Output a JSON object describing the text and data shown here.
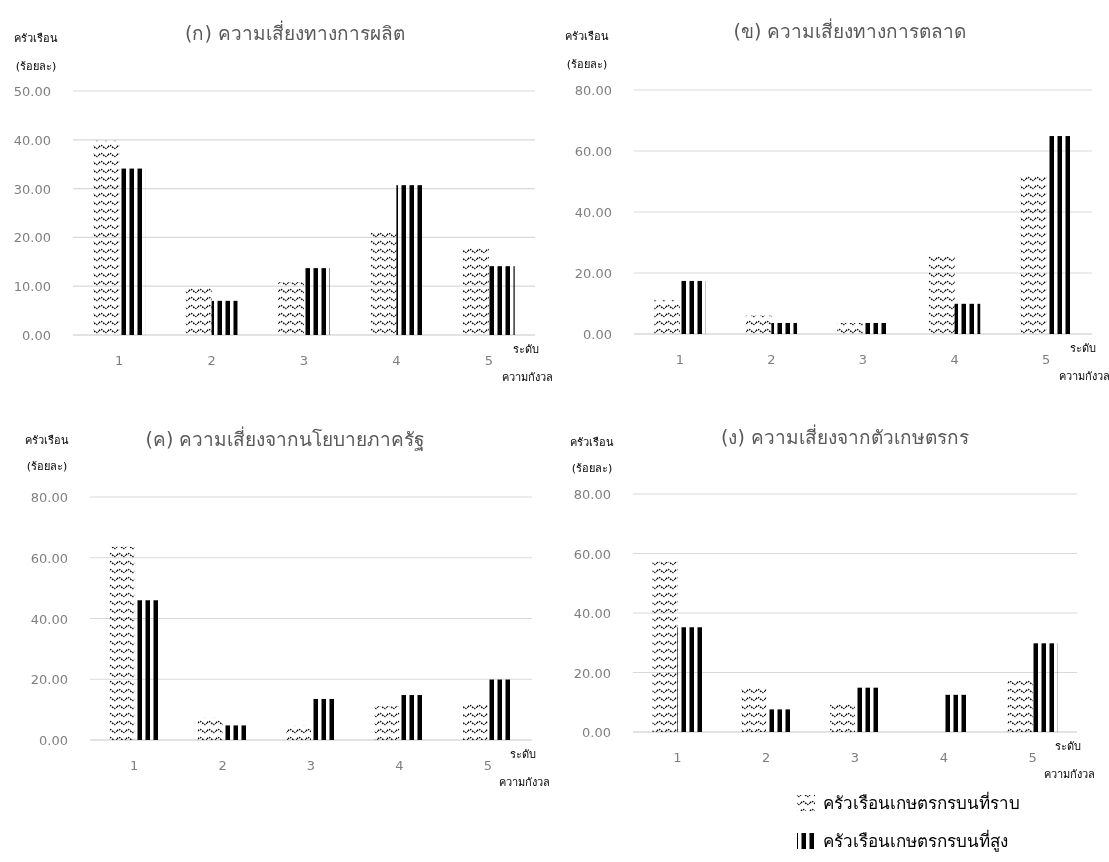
{
  "chart_data": [
    {
      "type": "bar",
      "title": "(ก) ความเสี่ยงทางการผลิต",
      "ylabel": "ครัวเรือน (ร้อยละ)",
      "xlabel": "ระดับ ความกังวล",
      "categories": [
        "1",
        "2",
        "3",
        "4",
        "5"
      ],
      "series": [
        {
          "color": "#000000",
          "values": [
            39.8,
            9.9,
            10.8,
            21.0,
            17.9
          ]
        },
        {
          "color": "#000000",
          "values": [
            34.1,
            7.0,
            13.7,
            30.7,
            14.1
          ]
        }
      ],
      "ylim": [
        0,
        50
      ],
      "yticks": [
        {
          "value": 0,
          "label": "0.00"
        },
        {
          "value": 10,
          "label": "10.00"
        },
        {
          "value": 20,
          "label": "20.00"
        },
        {
          "value": 30,
          "label": "30.00"
        },
        {
          "value": 40,
          "label": "40.00"
        },
        {
          "value": 50,
          "label": "50.00"
        }
      ],
      "grid": "y"
    },
    {
      "type": "bar",
      "title": "(ข) ความเสี่ยงทางการตลาด",
      "ylabel": "ครัวเรือน (ร้อยละ)",
      "xlabel": "ระดับ ความกังวล",
      "categories": [
        "1",
        "2",
        "3",
        "4",
        "5"
      ],
      "series": [
        {
          "color": "#000000",
          "values": [
            11.1,
            6.0,
            3.6,
            26.0,
            52.3
          ]
        },
        {
          "color": "#000000",
          "values": [
            17.4,
            3.6,
            3.6,
            9.9,
            64.9
          ]
        }
      ],
      "ylim": [
        0,
        80
      ],
      "yticks": [
        {
          "value": 0,
          "label": "0.00"
        },
        {
          "value": 20,
          "label": "20.00"
        },
        {
          "value": 40,
          "label": "40.00"
        },
        {
          "value": 60,
          "label": "60.00"
        },
        {
          "value": 80,
          "label": "80.00"
        }
      ],
      "grid": "y"
    },
    {
      "type": "bar",
      "title": "(ค) ความเสี่ยงจากนโยบายภาครัฐ",
      "ylabel": "ครัวเรือน (ร้อยละ)",
      "xlabel": "ระดับ ความกังวล",
      "categories": [
        "1",
        "2",
        "3",
        "4",
        "5"
      ],
      "series": [
        {
          "color": "#000000",
          "values": [
            63.6,
            7.4,
            4.8,
            11.1,
            12.1
          ]
        },
        {
          "color": "#000000",
          "values": [
            46.0,
            4.8,
            13.5,
            14.8,
            19.9
          ]
        }
      ],
      "ylim": [
        0,
        80
      ],
      "yticks": [
        {
          "value": 0,
          "label": "0.00"
        },
        {
          "value": 20,
          "label": "20.00"
        },
        {
          "value": 40,
          "label": "40.00"
        },
        {
          "value": 60,
          "label": "60.00"
        },
        {
          "value": 80,
          "label": "80.00"
        }
      ],
      "grid": "y"
    },
    {
      "type": "bar",
      "title": "(ง) ความเสี่ยงจากตัวเกษตรกร",
      "ylabel": "ครัวเรือน (ร้อยละ)",
      "xlabel": "ระดับ ความกังวล",
      "categories": [
        "1",
        "2",
        "3",
        "4",
        "5"
      ],
      "series": [
        {
          "name": "ครัวเรือนเกษตรกรบนที่ราบ",
          "color": "#000000",
          "values": [
            57.2,
            14.9,
            9.8,
            0,
            17.3
          ]
        },
        {
          "name": "ครัวเรือนเกษตรกรบนที่สูง",
          "color": "#000000",
          "values": [
            35.2,
            7.6,
            14.9,
            12.5,
            29.8
          ]
        }
      ],
      "ylim": [
        0,
        80
      ],
      "yticks": [
        {
          "value": 0,
          "label": "0.00"
        },
        {
          "value": 20,
          "label": "20.00"
        },
        {
          "value": 40,
          "label": "40.00"
        },
        {
          "value": 60,
          "label": "60.00"
        },
        {
          "value": 80,
          "label": "80.00"
        }
      ],
      "grid": "y",
      "legend": "bottom right"
    }
  ]
}
